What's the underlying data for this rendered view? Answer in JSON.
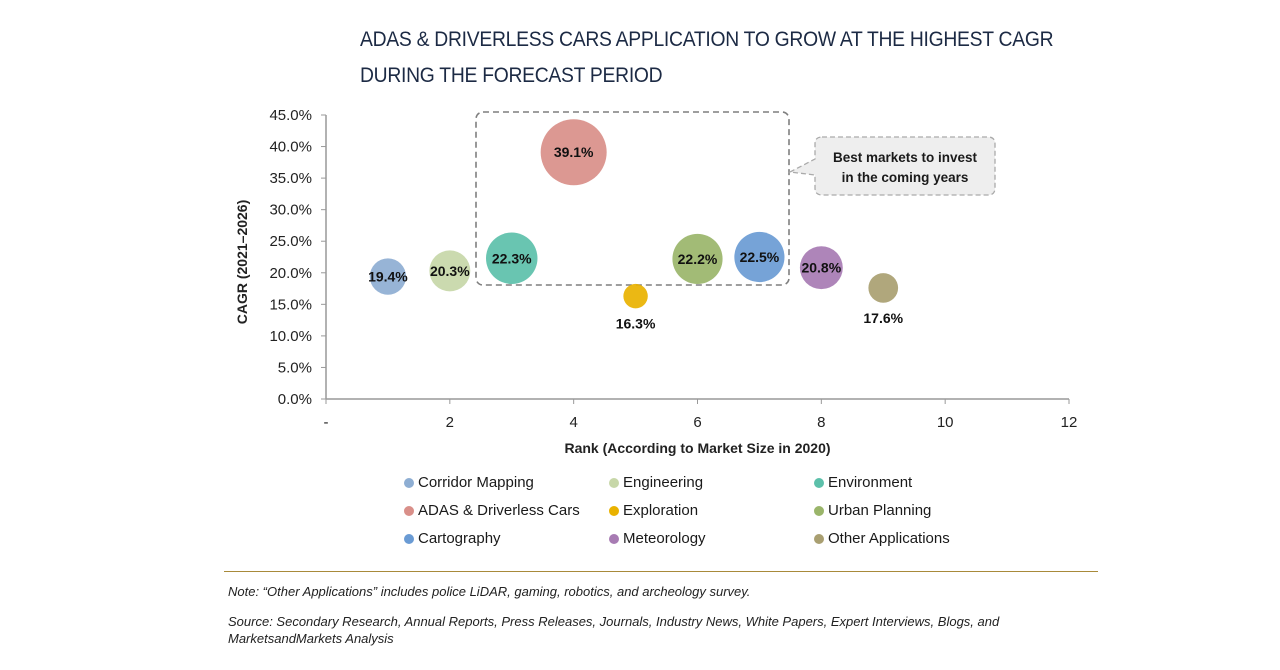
{
  "chart_data": {
    "type": "bubble",
    "title": "ADAS & DRIVERLESS CARS APPLICATION TO GROW AT THE HIGHEST CAGR DURING THE FORECAST PERIOD",
    "title_lines": [
      "ADAS & DRIVERLESS CARS APPLICATION TO GROW AT THE HIGHEST CAGR",
      "DURING THE FORECAST PERIOD"
    ],
    "xlabel": "Rank (According to Market Size in 2020)",
    "ylabel": "CAGR (2021–2026)",
    "xlim": [
      0,
      12
    ],
    "ylim": [
      0,
      45
    ],
    "x_ticks": [
      0,
      2,
      4,
      6,
      8,
      10,
      12
    ],
    "x_tick_labels": [
      "-",
      "2",
      "4",
      "6",
      "8",
      "10",
      "12"
    ],
    "y_ticks": [
      0,
      5,
      10,
      15,
      20,
      25,
      30,
      35,
      40,
      45
    ],
    "y_tick_labels": [
      "0.0%",
      "5.0%",
      "10.0%",
      "15.0%",
      "20.0%",
      "25.0%",
      "30.0%",
      "35.0%",
      "40.0%",
      "45.0%"
    ],
    "grid": false,
    "legend_position": "bottom",
    "series": [
      {
        "name": "Corridor Mapping",
        "x": 1,
        "y": 19.4,
        "label": "19.4%",
        "relative_size": 0.55,
        "color": "#8eaed3",
        "label_pos": "center"
      },
      {
        "name": "Engineering",
        "x": 2,
        "y": 20.3,
        "label": "20.3%",
        "relative_size": 0.62,
        "color": "#c7d7a8",
        "label_pos": "center"
      },
      {
        "name": "Environment",
        "x": 3,
        "y": 22.3,
        "label": "22.3%",
        "relative_size": 0.78,
        "color": "#5cc0aa",
        "label_pos": "center"
      },
      {
        "name": "ADAS & Driverless Cars",
        "x": 4,
        "y": 39.1,
        "label": "39.1%",
        "relative_size": 1.0,
        "color": "#d98f89",
        "label_pos": "center"
      },
      {
        "name": "Exploration",
        "x": 5,
        "y": 16.3,
        "label": "16.3%",
        "relative_size": 0.37,
        "color": "#e9b200",
        "label_pos": "below"
      },
      {
        "name": "Urban Planning",
        "x": 6,
        "y": 22.2,
        "label": "22.2%",
        "relative_size": 0.76,
        "color": "#9ab56a",
        "label_pos": "center"
      },
      {
        "name": "Cartography",
        "x": 7,
        "y": 22.5,
        "label": "22.5%",
        "relative_size": 0.76,
        "color": "#6a9bd4",
        "label_pos": "center"
      },
      {
        "name": "Meteorology",
        "x": 8,
        "y": 20.8,
        "label": "20.8%",
        "relative_size": 0.65,
        "color": "#a77bb3",
        "label_pos": "center"
      },
      {
        "name": "Other Applications",
        "x": 9,
        "y": 17.6,
        "label": "17.6%",
        "relative_size": 0.45,
        "color": "#a99f71",
        "label_pos": "below"
      }
    ],
    "annotations": [
      {
        "text_lines": [
          "Best markets to invest",
          "in the coming years"
        ],
        "highlight_x_range": [
          2.5,
          7.5
        ],
        "highlight_y_range": [
          18,
          45
        ]
      }
    ]
  },
  "footer": {
    "note": "Note: “Other Applications” includes police LiDAR, gaming, robotics, and archeology survey.",
    "source": "Source: Secondary Research, Annual Reports, Press Releases, Journals, Industry News, White Papers, Expert Interviews, Blogs, and MarketsandMarkets Analysis"
  },
  "colors": {
    "title": "#1c2a44",
    "axis": "#999999",
    "divider": "#a88a3a",
    "callout_fill": "#eeeeee",
    "dash": "#7f7f7f"
  }
}
